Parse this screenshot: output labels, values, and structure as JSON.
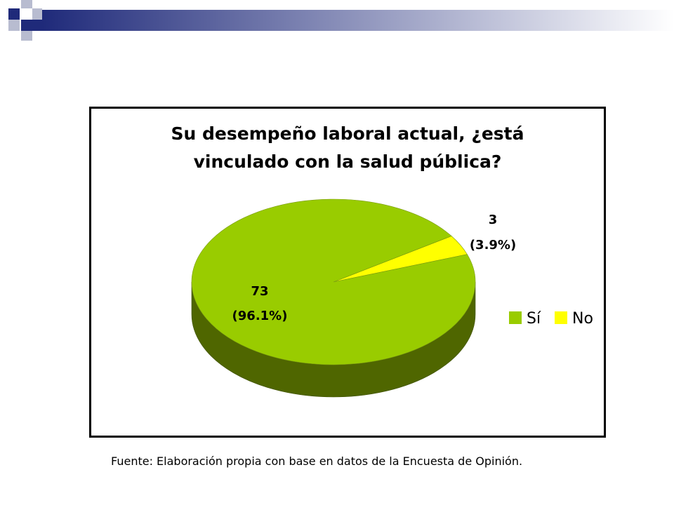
{
  "colors": {
    "header_blue": "#1f2a7a",
    "header_grey": "#b8bcd0",
    "gradient_start": "#1f2a7a",
    "gradient_end": "#ffffff"
  },
  "chart_data": {
    "type": "pie",
    "title_lines": [
      "Su desempeño laboral actual, ¿está",
      "vinculado con la salud pública?"
    ],
    "categories": [
      "Sí",
      "No"
    ],
    "values": [
      73,
      3
    ],
    "percentages": [
      96.1,
      3.9
    ],
    "labels": [
      {
        "count": "73",
        "percent": "(96.1%)"
      },
      {
        "count": "3",
        "percent": "(3.9%)"
      }
    ],
    "colors": [
      "#99cc00",
      "#ffff00"
    ],
    "side_colors": [
      "#4f6600",
      "#999900"
    ],
    "legend": {
      "position": "right",
      "entries": [
        "Sí",
        "No"
      ]
    }
  },
  "source_note": "Fuente: Elaboración propia con base en datos de la Encuesta de Opinión."
}
